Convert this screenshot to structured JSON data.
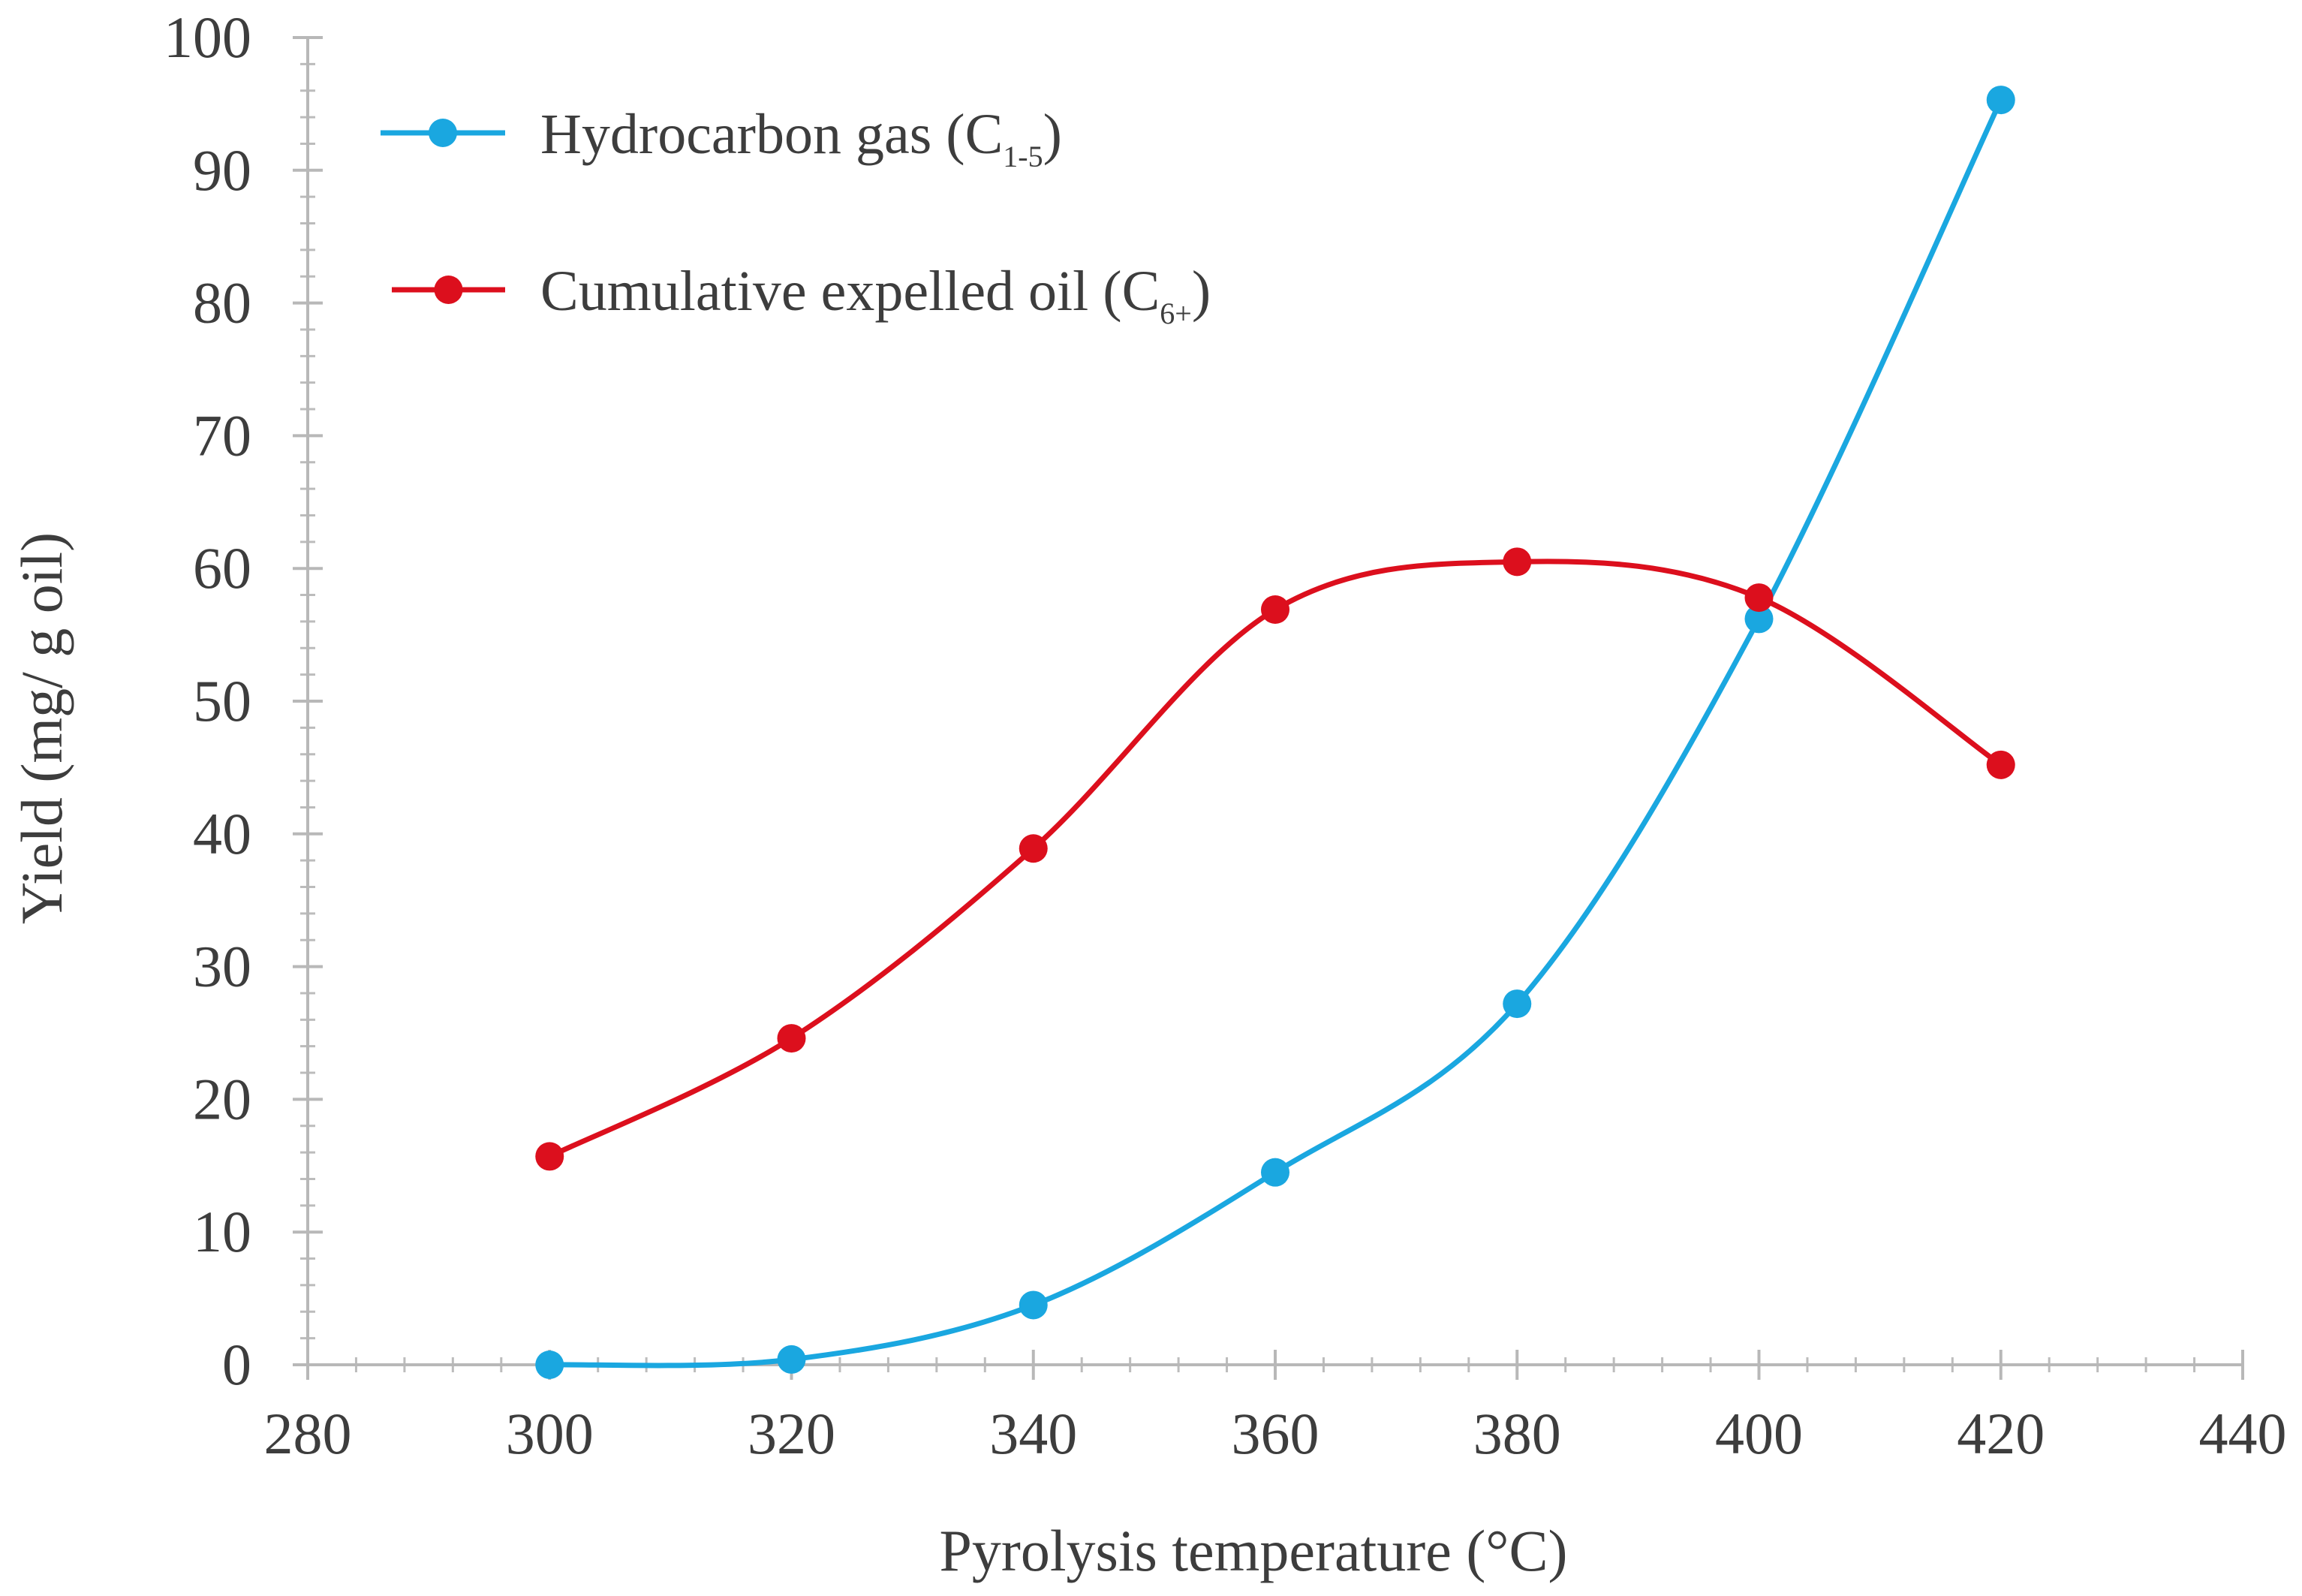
{
  "chart_data": {
    "type": "line",
    "xlabel": "Pyrolysis temperature (°C)",
    "ylabel": "Yield (mg/ g oil)",
    "xlim": [
      280,
      440
    ],
    "ylim": [
      0,
      100
    ],
    "x_ticks": [
      "280",
      "300",
      "320",
      "340",
      "360",
      "380",
      "400",
      "420",
      "440"
    ],
    "y_ticks": [
      "0",
      "10",
      "20",
      "30",
      "40",
      "50",
      "60",
      "70",
      "80",
      "90",
      "100"
    ],
    "grid": false,
    "legend_position": "top-left",
    "smooth": true,
    "series": [
      {
        "name": "Hydrocarbon  gas (C1-5)",
        "legend_main": "Hydrocarbon  gas (C",
        "legend_sub": "1-5",
        "legend_close": ")",
        "color": "#1aa7e0",
        "x": [
          300,
          320,
          340,
          360,
          380,
          400,
          420
        ],
        "y": [
          0,
          0.4,
          4.5,
          14.5,
          27.2,
          56.2,
          95.3
        ]
      },
      {
        "name": "Cumulative expelled oil (C6+)",
        "legend_main": "Cumulative expelled oil (C",
        "legend_sub": "6+",
        "legend_close": ")",
        "color": "#dc0f1d",
        "x": [
          300,
          320,
          340,
          360,
          380,
          400,
          420
        ],
        "y": [
          15.7,
          24.6,
          38.9,
          56.9,
          60.5,
          57.8,
          45.2
        ]
      }
    ]
  }
}
